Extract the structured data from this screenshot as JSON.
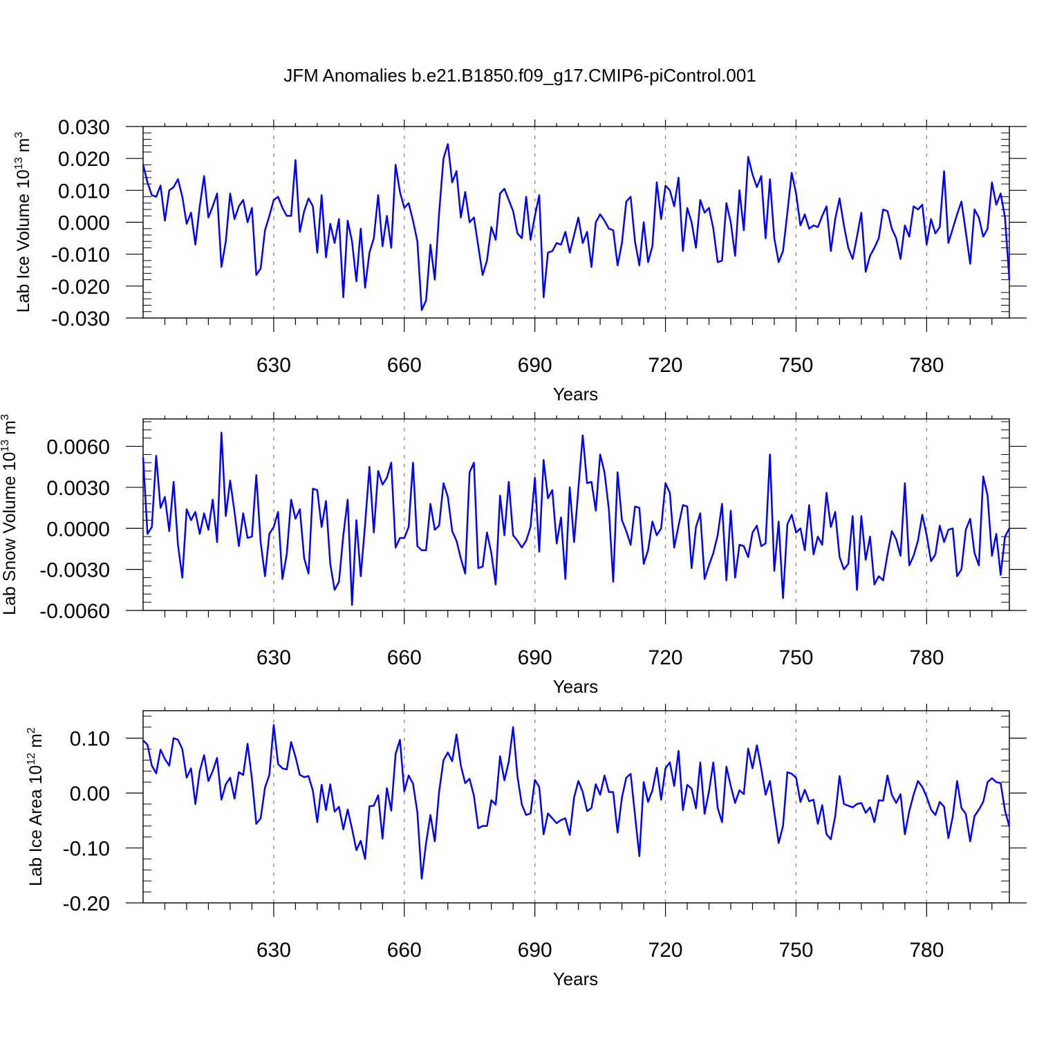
{
  "title": "JFM Anomalies b.e21.B1850.f09_g17.CMIP6-piControl.001",
  "colors": {
    "line": "#0000ff",
    "axis": "#000000",
    "grid": "#888888"
  },
  "chart_data": [
    {
      "type": "line",
      "name": "ice-volume",
      "ylabel": {
        "text": "Lab Ice Volume 10",
        "sup": "13",
        "unit": " m",
        "unit_sup": "3"
      },
      "xlabel": "Years",
      "xlim": [
        600,
        799
      ],
      "ylim": [
        -0.03,
        0.03
      ],
      "xticks": [
        630,
        660,
        690,
        720,
        750,
        780
      ],
      "xtick_labels": [
        "630",
        "660",
        "690",
        "720",
        "750",
        "780"
      ],
      "yticks": [
        -0.03,
        -0.02,
        -0.01,
        0.0,
        0.01,
        0.02,
        0.03
      ],
      "ytick_labels": [
        "-0.030",
        "-0.020",
        "-0.010",
        "0.000",
        "0.010",
        "0.020",
        "0.030"
      ],
      "series": [
        {
          "name": "Lab Ice Volume",
          "x_start": 600,
          "values": [
            0.018,
            0.0125,
            0.0085,
            0.008,
            0.0115,
            0.0005,
            0.01,
            0.011,
            0.0135,
            0.008,
            -0.0005,
            0.003,
            -0.007,
            0.005,
            0.0145,
            0.0015,
            0.005,
            0.009,
            -0.014,
            -0.006,
            0.009,
            0.001,
            0.005,
            0.007,
            0.0,
            0.0045,
            -0.0165,
            -0.0145,
            -0.0025,
            0.002,
            0.007,
            0.008,
            0.0045,
            0.002,
            0.002,
            0.0195,
            -0.003,
            0.0035,
            0.0075,
            0.005,
            -0.0095,
            0.0085,
            -0.011,
            -0.0005,
            -0.0065,
            0.001,
            -0.0235,
            0.0005,
            -0.006,
            -0.0185,
            -0.002,
            -0.0205,
            -0.0095,
            -0.005,
            0.0085,
            -0.0075,
            0.002,
            -0.008,
            0.018,
            0.0095,
            0.0045,
            0.006,
            0.0005,
            -0.006,
            -0.0275,
            -0.0245,
            -0.007,
            -0.018,
            0.003,
            0.02,
            0.0245,
            0.0125,
            0.016,
            0.0015,
            0.0095,
            0.0,
            0.0015,
            -0.0075,
            -0.0165,
            -0.012,
            -0.0015,
            -0.0055,
            0.009,
            0.0105,
            0.007,
            0.0035,
            -0.0035,
            -0.005,
            0.008,
            -0.0055,
            0.002,
            0.0085,
            -0.0235,
            -0.0095,
            -0.009,
            -0.0065,
            -0.007,
            -0.003,
            -0.0095,
            -0.004,
            0.0015,
            -0.0065,
            -0.003,
            -0.014,
            0.0,
            0.0025,
            0.0005,
            -0.002,
            -0.0025,
            -0.0135,
            -0.0065,
            0.0065,
            0.008,
            -0.006,
            -0.0135,
            0.0,
            -0.0125,
            -0.0075,
            0.0125,
            0.001,
            0.0115,
            0.01,
            0.005,
            0.014,
            -0.009,
            0.0045,
            0.0,
            -0.008,
            0.007,
            0.003,
            0.0045,
            -0.002,
            -0.0125,
            -0.012,
            0.006,
            0.0,
            -0.0105,
            0.01,
            -0.0025,
            0.0205,
            0.015,
            0.011,
            0.0145,
            -0.005,
            0.0135,
            -0.005,
            -0.0125,
            -0.009,
            0.003,
            0.0155,
            0.009,
            -0.001,
            0.0025,
            -0.002,
            -0.001,
            -0.0015,
            0.002,
            0.005,
            -0.009,
            0.001,
            0.0075,
            -0.001,
            -0.008,
            -0.0115,
            -0.0045,
            0.003,
            -0.0155,
            -0.0105,
            -0.008,
            -0.005,
            0.004,
            0.0035,
            -0.002,
            -0.005,
            -0.0115,
            -0.001,
            -0.0045,
            0.005,
            0.004,
            0.0055,
            -0.007,
            0.001,
            -0.0035,
            -0.0015,
            0.016,
            -0.0065,
            -0.002,
            0.0025,
            0.0065,
            -0.003,
            -0.013,
            0.004,
            0.0015,
            -0.0045,
            -0.002,
            0.0125,
            0.0055,
            0.009,
            0.0015,
            -0.018
          ]
        }
      ]
    },
    {
      "type": "line",
      "name": "snow-volume",
      "ylabel": {
        "text": "Lab Snow Volume 10",
        "sup": "13",
        "unit": " m",
        "unit_sup": "3"
      },
      "xlabel": "Years",
      "xlim": [
        600,
        799
      ],
      "ylim": [
        -0.006,
        0.008
      ],
      "xticks": [
        630,
        660,
        690,
        720,
        750,
        780
      ],
      "xtick_labels": [
        "630",
        "660",
        "690",
        "720",
        "750",
        "780"
      ],
      "yticks": [
        -0.006,
        -0.003,
        0.0,
        0.003,
        0.006
      ],
      "ytick_labels": [
        "-0.0060",
        "-0.0030",
        "0.0000",
        "0.0030",
        "0.0060"
      ],
      "series": [
        {
          "name": "Lab Snow Volume",
          "x_start": 600,
          "values": [
            0.0052,
            -0.0004,
            0.0001,
            0.0053,
            0.0015,
            0.0023,
            -0.0002,
            0.0034,
            -0.0012,
            -0.0036,
            0.0014,
            0.0006,
            0.0012,
            -0.0004,
            0.0011,
            -0.0001,
            0.0021,
            -0.001,
            0.007,
            0.0009,
            0.0035,
            0.0012,
            -0.0013,
            0.0011,
            -0.0007,
            -0.0006,
            0.0039,
            -0.001,
            -0.0035,
            -0.0004,
            0.0001,
            0.0012,
            -0.0037,
            -0.0019,
            0.0021,
            0.0007,
            0.0014,
            -0.0022,
            -0.0033,
            0.0029,
            0.0028,
            0.0001,
            0.002,
            -0.0026,
            -0.0045,
            -0.0039,
            -0.0005,
            0.0021,
            -0.0056,
            0.0006,
            -0.0035,
            0.0003,
            0.0045,
            -0.0003,
            0.0042,
            0.0032,
            0.0037,
            0.0048,
            -0.0014,
            -0.0007,
            -0.0007,
            0.0001,
            0.0048,
            -0.0013,
            -0.0016,
            -0.0016,
            0.0018,
            -0.0001,
            0.0002,
            0.0033,
            0.0023,
            -0.0002,
            -0.0009,
            -0.0022,
            -0.0033,
            0.0041,
            0.0048,
            -0.0029,
            -0.0028,
            -0.0003,
            -0.0018,
            -0.0041,
            0.0024,
            -0.0005,
            0.0034,
            -0.0005,
            -0.0009,
            -0.0014,
            -0.0009,
            0.0001,
            0.0037,
            -0.0017,
            0.005,
            0.0022,
            0.0028,
            -0.0011,
            0.0008,
            -0.0037,
            0.003,
            -0.001,
            0.0029,
            0.0068,
            0.0033,
            0.0034,
            0.0013,
            0.0054,
            0.0041,
            0.0014,
            -0.0039,
            0.0041,
            0.0006,
            -0.0002,
            -0.0012,
            0.0016,
            0.0015,
            -0.0026,
            -0.0016,
            0.0005,
            -0.0005,
            0.0,
            0.0033,
            0.0026,
            -0.0014,
            0.0002,
            0.0017,
            0.0016,
            -0.0029,
            0.0001,
            0.0011,
            -0.0037,
            -0.0027,
            -0.0018,
            -0.0005,
            0.0018,
            -0.0038,
            0.0013,
            -0.0036,
            -0.0012,
            -0.0013,
            -0.0021,
            -0.0003,
            0.0002,
            -0.0013,
            -0.0011,
            0.0054,
            -0.0031,
            0.0005,
            -0.0051,
            0.0003,
            0.001,
            -0.0003,
            0.0,
            -0.0016,
            0.0017,
            -0.0019,
            -0.0006,
            -0.0012,
            0.0026,
            0.0001,
            0.0012,
            -0.0021,
            -0.003,
            -0.0026,
            0.0009,
            -0.0045,
            0.0009,
            -0.0023,
            -0.0006,
            -0.0041,
            -0.0035,
            -0.0038,
            -0.0019,
            -0.0002,
            -0.0008,
            -0.002,
            0.0033,
            -0.0027,
            -0.002,
            -0.0009,
            0.001,
            -0.0005,
            -0.0024,
            -0.0019,
            0.0002,
            -0.001,
            -0.0001,
            0.0,
            -0.0035,
            -0.003,
            -0.0001,
            0.0007,
            -0.0018,
            -0.0027,
            0.0038,
            0.0024,
            -0.002,
            -0.0004,
            -0.0034,
            -0.0006,
            0.0
          ]
        }
      ]
    },
    {
      "type": "line",
      "name": "ice-area",
      "ylabel": {
        "text": "Lab Ice Area 10",
        "sup": "12",
        "unit": " m",
        "unit_sup": "2"
      },
      "xlabel": "Years",
      "xlim": [
        600,
        799
      ],
      "ylim": [
        -0.2,
        0.15
      ],
      "xticks": [
        630,
        660,
        690,
        720,
        750,
        780
      ],
      "xtick_labels": [
        "630",
        "660",
        "690",
        "720",
        "750",
        "780"
      ],
      "yticks": [
        -0.2,
        -0.1,
        0.0,
        0.1
      ],
      "ytick_labels": [
        "-0.20",
        "-0.10",
        "0.00",
        "0.10"
      ],
      "series": [
        {
          "name": "Lab Ice Area",
          "x_start": 600,
          "values": [
            0.096,
            0.088,
            0.05,
            0.036,
            0.079,
            0.062,
            0.05,
            0.1,
            0.097,
            0.08,
            0.028,
            0.045,
            -0.02,
            0.04,
            0.069,
            0.022,
            0.04,
            0.064,
            -0.012,
            0.016,
            0.028,
            -0.01,
            0.038,
            0.033,
            0.09,
            0.026,
            -0.056,
            -0.046,
            0.01,
            0.033,
            0.124,
            0.053,
            0.045,
            0.043,
            0.093,
            0.066,
            0.033,
            0.029,
            0.031,
            0.004,
            -0.053,
            0.015,
            -0.031,
            0.016,
            -0.034,
            -0.025,
            -0.066,
            -0.03,
            -0.065,
            -0.104,
            -0.087,
            -0.12,
            -0.024,
            -0.023,
            -0.004,
            -0.083,
            0.009,
            -0.032,
            0.071,
            0.097,
            0.003,
            0.032,
            0.017,
            -0.035,
            -0.156,
            -0.091,
            -0.04,
            -0.088,
            0.003,
            0.06,
            0.074,
            0.058,
            0.107,
            0.05,
            0.018,
            0.026,
            -0.005,
            -0.064,
            -0.06,
            -0.06,
            -0.013,
            -0.021,
            0.067,
            0.023,
            0.057,
            0.12,
            0.03,
            -0.021,
            -0.04,
            -0.037,
            0.024,
            0.011,
            -0.075,
            -0.037,
            -0.046,
            -0.055,
            -0.049,
            -0.046,
            -0.076,
            -0.008,
            0.022,
            0.002,
            -0.033,
            -0.027,
            0.016,
            -0.003,
            0.032,
            0.002,
            0.002,
            -0.072,
            -0.008,
            0.028,
            0.035,
            -0.04,
            -0.115,
            0.02,
            -0.016,
            0.005,
            0.046,
            -0.012,
            0.045,
            0.056,
            0.013,
            0.077,
            -0.031,
            0.015,
            0.008,
            -0.028,
            0.056,
            -0.038,
            0.003,
            0.056,
            -0.027,
            -0.053,
            0.048,
            0.013,
            -0.018,
            0.005,
            -0.002,
            0.081,
            0.045,
            0.087,
            0.045,
            -0.003,
            0.022,
            -0.035,
            -0.091,
            -0.06,
            0.038,
            0.035,
            0.028,
            -0.016,
            0.006,
            -0.015,
            -0.012,
            -0.056,
            -0.022,
            -0.075,
            -0.084,
            -0.042,
            0.031,
            -0.02,
            -0.023,
            -0.026,
            -0.02,
            -0.018,
            -0.036,
            -0.026,
            -0.053,
            -0.013,
            -0.014,
            0.032,
            -0.003,
            -0.018,
            -0.002,
            -0.075,
            -0.033,
            -0.003,
            0.022,
            0.011,
            -0.007,
            -0.03,
            -0.04,
            -0.016,
            -0.025,
            -0.082,
            -0.043,
            0.022,
            -0.027,
            -0.038,
            -0.088,
            -0.042,
            -0.03,
            -0.016,
            0.02,
            0.027,
            0.02,
            0.018,
            -0.032,
            -0.061
          ]
        }
      ]
    }
  ]
}
